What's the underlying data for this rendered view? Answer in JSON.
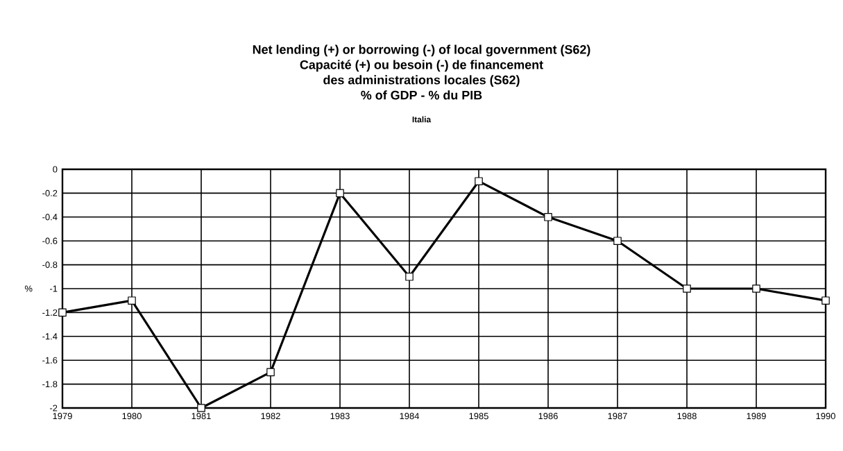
{
  "chart_data": {
    "type": "line",
    "title": "Net lending (+) or borrowing (-) of local government (S62)\nCapacité (+) ou besoin (-) de financement\ndes administrations locales (S62)\n% of GDP - % du PIB",
    "subtitle": "Italia",
    "ylabel": "%",
    "categories": [
      "1979",
      "1980",
      "1981",
      "1982",
      "1983",
      "1984",
      "1985",
      "1986",
      "1987",
      "1988",
      "1989",
      "1990"
    ],
    "series": [
      {
        "color": "#000000",
        "values": [
          -1.2,
          -1.1,
          -2,
          -1.7,
          -0.2,
          -0.9,
          -0.1,
          -0.4,
          -0.6,
          -1.0,
          -1.0,
          -1.1
        ]
      }
    ],
    "ylim": [
      -2,
      0
    ],
    "yticks": [
      -2,
      -1.8,
      -1.6,
      -1.4,
      -1.2,
      -1,
      -0.8,
      -0.6,
      -0.4,
      -0.2,
      0
    ],
    "grid": true,
    "marker": "square",
    "line_style": "solid"
  }
}
